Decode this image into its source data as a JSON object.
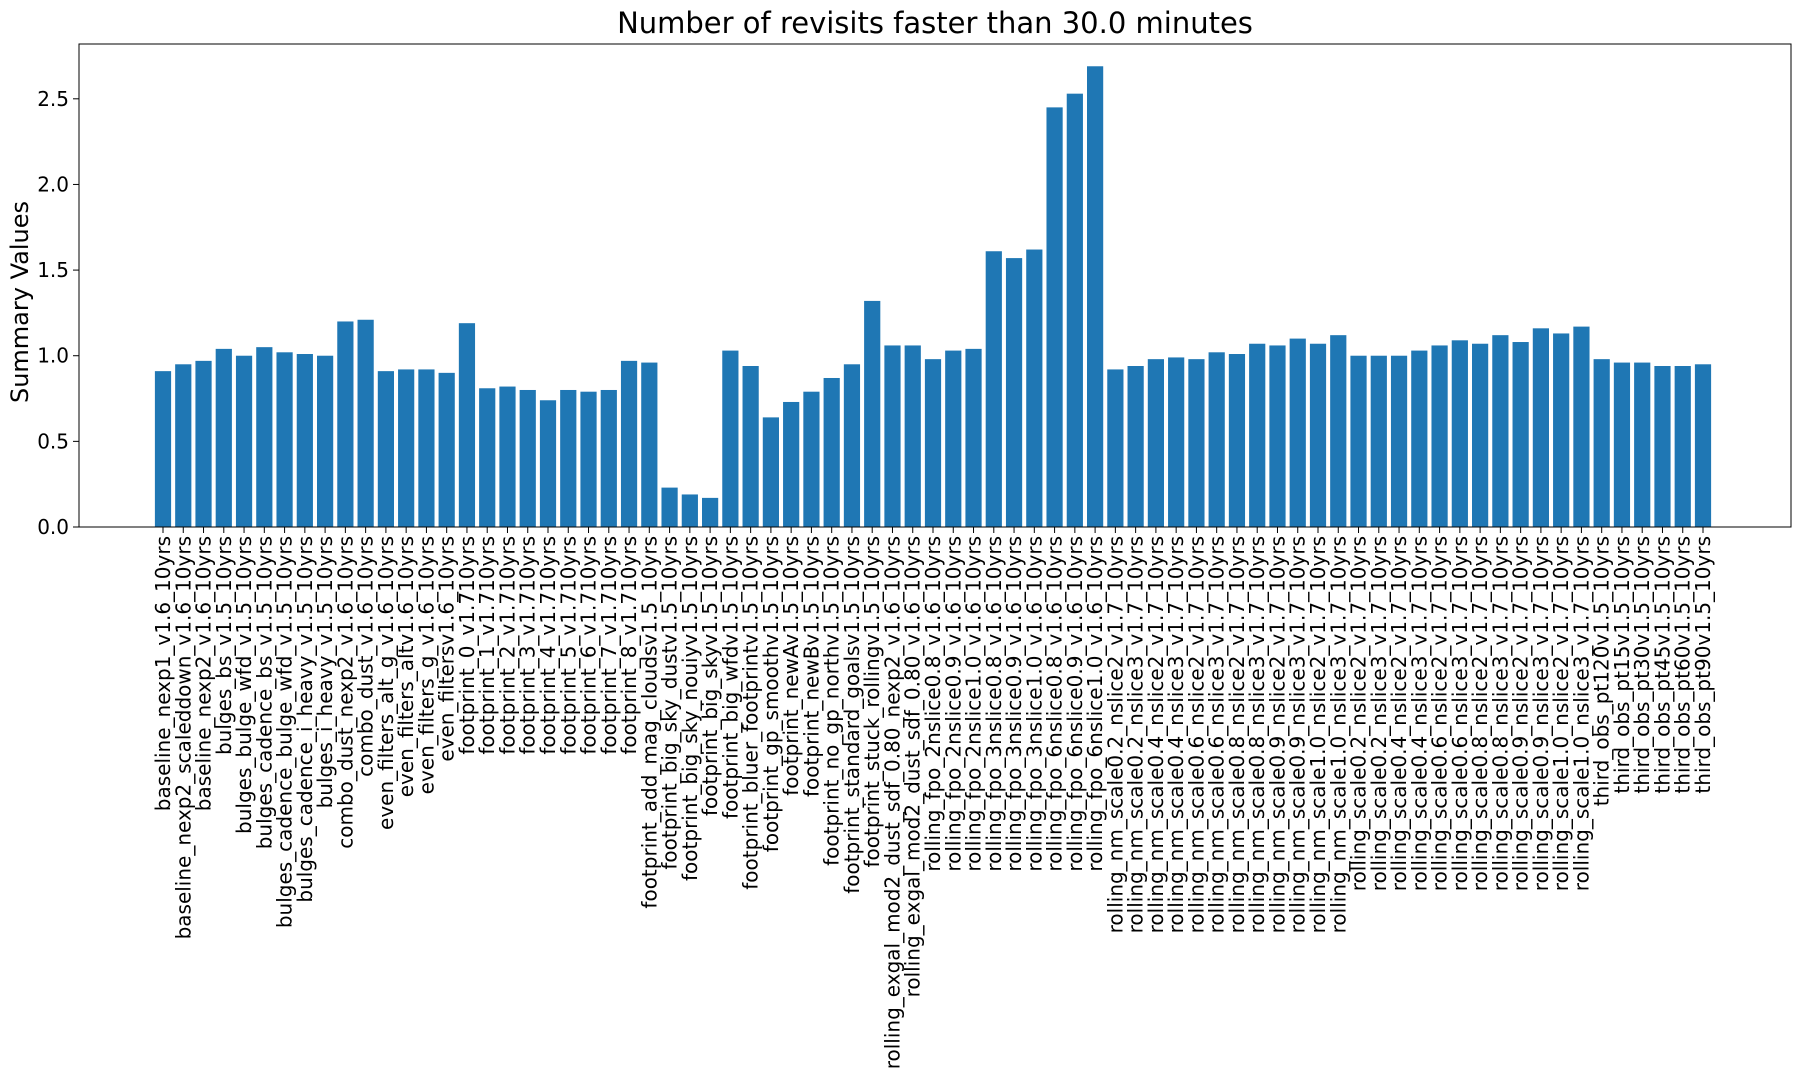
{
  "chart_data": {
    "type": "bar",
    "title": "Number of revisits faster than 30.0 minutes",
    "xlabel": "",
    "ylabel": "Summary Values",
    "ylim": [
      0,
      2.82
    ],
    "yticks": [
      "0.0",
      "0.5",
      "1.0",
      "1.5",
      "2.0",
      "2.5"
    ],
    "grid": false,
    "bar_color": "#1f77b4",
    "categories": [
      "baseline_nexp1_v1.6_10yrs",
      "baseline_nexp2_scaleddown_v1.6_10yrs",
      "baseline_nexp2_v1.6_10yrs",
      "bulges_bs_v1.5_10yrs",
      "bulges_bulge_wfd_v1.5_10yrs",
      "bulges_cadence_bs_v1.5_10yrs",
      "bulges_cadence_bulge_wfd_v1.5_10yrs",
      "bulges_cadence_i_heavy_v1.5_10yrs",
      "bulges_i_heavy_v1.5_10yrs",
      "combo_dust_nexp2_v1.6_10yrs",
      "combo_dust_v1.6_10yrs",
      "even_filters_alt_g_v1.6_10yrs",
      "even_filters_altv1.6_10yrs",
      "even_filters_g_v1.6_10yrs",
      "even_filtersv1.6_10yrs",
      "footprint_0_v1.710yrs",
      "footprint_1_v1.710yrs",
      "footprint_2_v1.710yrs",
      "footprint_3_v1.710yrs",
      "footprint_4_v1.710yrs",
      "footprint_5_v1.710yrs",
      "footprint_6_v1.710yrs",
      "footprint_7_v1.710yrs",
      "footprint_8_v1.710yrs",
      "footprint_add_mag_cloudsv1.5_10yrs",
      "footprint_big_sky_dustv1.5_10yrs",
      "footprint_big_sky_nouiyv1.5_10yrs",
      "footprint_big_skyv1.5_10yrs",
      "footprint_big_wfdv1.5_10yrs",
      "footprint_bluer_footprintv1.5_10yrs",
      "footprint_gp_smoothv1.5_10yrs",
      "footprint_newAv1.5_10yrs",
      "footprint_newBv1.5_10yrs",
      "footprint_no_gp_northv1.5_10yrs",
      "footprint_standard_goalsv1.5_10yrs",
      "footprint_stuck_rollingv1.5_10yrs",
      "rolling_exgal_mod2_dust_sdf_0.80_nexp2_v1.6_10yrs",
      "rolling_exgal_mod2_dust_sdf_0.80_v1.6_10yrs",
      "rolling_fpo_2nslice0.8_v1.6_10yrs",
      "rolling_fpo_2nslice0.9_v1.6_10yrs",
      "rolling_fpo_2nslice1.0_v1.6_10yrs",
      "rolling_fpo_3nslice0.8_v1.6_10yrs",
      "rolling_fpo_3nslice0.9_v1.6_10yrs",
      "rolling_fpo_3nslice1.0_v1.6_10yrs",
      "rolling_fpo_6nslice0.8_v1.6_10yrs",
      "rolling_fpo_6nslice0.9_v1.6_10yrs",
      "rolling_fpo_6nslice1.0_v1.6_10yrs",
      "rolling_nm_scale0.2_nslice2_v1.7_10yrs",
      "rolling_nm_scale0.2_nslice3_v1.7_10yrs",
      "rolling_nm_scale0.4_nslice2_v1.7_10yrs",
      "rolling_nm_scale0.4_nslice3_v1.7_10yrs",
      "rolling_nm_scale0.6_nslice2_v1.7_10yrs",
      "rolling_nm_scale0.6_nslice3_v1.7_10yrs",
      "rolling_nm_scale0.8_nslice2_v1.7_10yrs",
      "rolling_nm_scale0.8_nslice3_v1.7_10yrs",
      "rolling_nm_scale0.9_nslice2_v1.7_10yrs",
      "rolling_nm_scale0.9_nslice3_v1.7_10yrs",
      "rolling_nm_scale1.0_nslice2_v1.7_10yrs",
      "rolling_nm_scale1.0_nslice3_v1.7_10yrs",
      "rolling_scale0.2_nslice2_v1.7_10yrs",
      "rolling_scale0.2_nslice3_v1.7_10yrs",
      "rolling_scale0.4_nslice2_v1.7_10yrs",
      "rolling_scale0.4_nslice3_v1.7_10yrs",
      "rolling_scale0.6_nslice2_v1.7_10yrs",
      "rolling_scale0.6_nslice3_v1.7_10yrs",
      "rolling_scale0.8_nslice2_v1.7_10yrs",
      "rolling_scale0.8_nslice3_v1.7_10yrs",
      "rolling_scale0.9_nslice2_v1.7_10yrs",
      "rolling_scale0.9_nslice3_v1.7_10yrs",
      "rolling_scale1.0_nslice2_v1.7_10yrs",
      "rolling_scale1.0_nslice3_v1.7_10yrs",
      "third_obs_pt120v1.5_10yrs",
      "third_obs_pt15v1.5_10yrs",
      "third_obs_pt30v1.5_10yrs",
      "third_obs_pt45v1.5_10yrs",
      "third_obs_pt60v1.5_10yrs",
      "third_obs_pt90v1.5_10yrs"
    ],
    "values": [
      0.91,
      0.95,
      0.97,
      1.04,
      1.0,
      1.05,
      1.02,
      1.01,
      1.0,
      1.2,
      1.21,
      0.91,
      0.92,
      0.92,
      0.9,
      1.19,
      0.81,
      0.82,
      0.8,
      0.74,
      0.8,
      0.79,
      0.8,
      0.97,
      0.96,
      0.23,
      0.19,
      0.17,
      1.03,
      0.94,
      0.64,
      0.73,
      0.79,
      0.87,
      0.95,
      1.32,
      1.06,
      1.06,
      0.98,
      1.03,
      1.04,
      1.61,
      1.57,
      1.62,
      2.45,
      2.53,
      2.69,
      0.92,
      0.94,
      0.98,
      0.99,
      0.98,
      1.02,
      1.01,
      1.07,
      1.06,
      1.1,
      1.07,
      1.12,
      1.0,
      1.0,
      1.0,
      1.03,
      1.06,
      1.09,
      1.07,
      1.12,
      1.08,
      1.16,
      1.13,
      1.17,
      0.98,
      0.96,
      0.96,
      0.94,
      0.94,
      0.95
    ]
  }
}
